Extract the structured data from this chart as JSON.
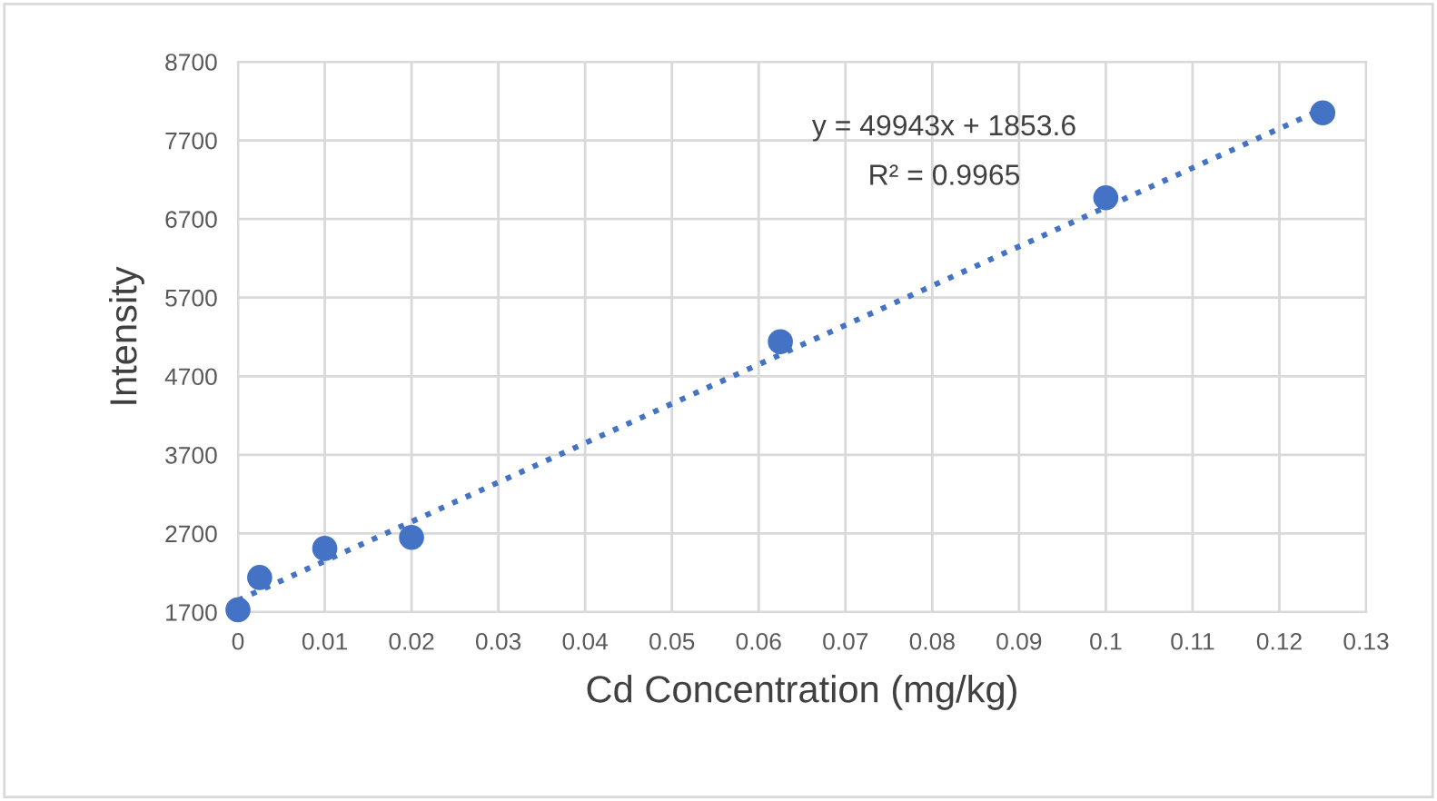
{
  "chart_data": {
    "type": "scatter",
    "xlabel": "Cd Concentration (mg/kg)",
    "ylabel": "Intensity",
    "series": [
      {
        "color": "#4472c4",
        "marker": "circle",
        "x": [
          0,
          0.0025,
          0.01,
          0.02,
          0.0625,
          0.1,
          0.125
        ],
        "values": [
          1730,
          2140,
          2510,
          2650,
          5140,
          6970,
          8050
        ]
      },
      {
        "type": "line",
        "color": "#4472c4",
        "line_style": "dotted",
        "marker": "none",
        "x": [
          0,
          0.125
        ],
        "values": [
          1850,
          8100
        ]
      }
    ],
    "annotations": [
      "y = 49943x + 1853.6",
      "R² = 0.9965"
    ],
    "xlim": [
      0,
      0.13
    ],
    "xticks": [
      0,
      0.01,
      0.02,
      0.03,
      0.04,
      0.05,
      0.06,
      0.07,
      0.08,
      0.09,
      0.1,
      0.11,
      0.12,
      0.13
    ],
    "ylim": [
      1700,
      8700
    ],
    "yticks": [
      1700,
      2700,
      3700,
      4700,
      5700,
      6700,
      7700,
      8700
    ],
    "grid": true
  }
}
